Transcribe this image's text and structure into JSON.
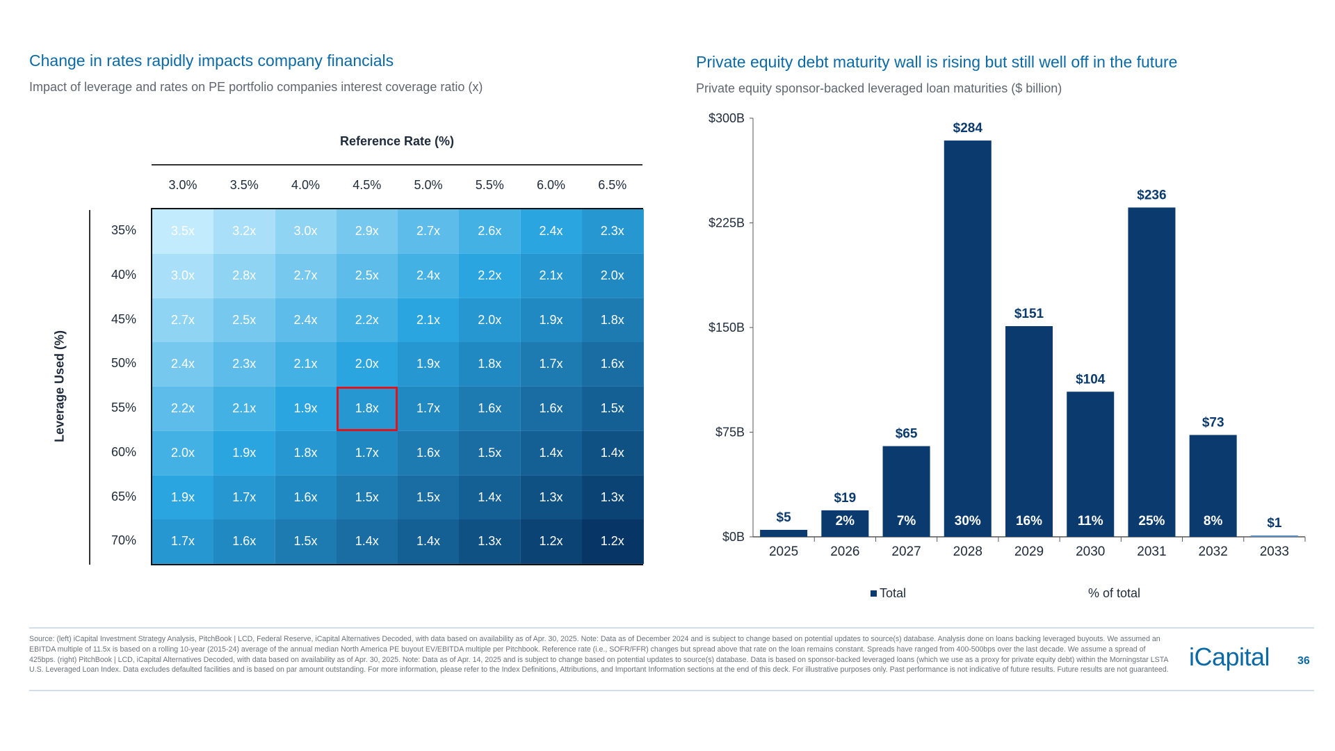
{
  "left": {
    "title": "Change in rates rapidly impacts company financials",
    "subtitle": "Impact of leverage and rates on PE portfolio companies interest coverage ratio (x)"
  },
  "right": {
    "title": "Private equity debt maturity wall is rising but still well off in the future",
    "subtitle": "Private equity sponsor-backed leveraged loan maturities ($ billion)"
  },
  "chart_data": [
    {
      "type": "heatmap",
      "xlabel": "Reference Rate (%)",
      "ylabel": "Leverage Used (%)",
      "columns": [
        "3.0%",
        "3.5%",
        "4.0%",
        "4.5%",
        "5.0%",
        "5.5%",
        "6.0%",
        "6.5%"
      ],
      "rows": [
        "35%",
        "40%",
        "45%",
        "50%",
        "55%",
        "60%",
        "65%",
        "70%"
      ],
      "values": [
        [
          "3.5x",
          "3.2x",
          "3.0x",
          "2.9x",
          "2.7x",
          "2.6x",
          "2.4x",
          "2.3x"
        ],
        [
          "3.0x",
          "2.8x",
          "2.7x",
          "2.5x",
          "2.4x",
          "2.2x",
          "2.1x",
          "2.0x"
        ],
        [
          "2.7x",
          "2.5x",
          "2.4x",
          "2.2x",
          "2.1x",
          "2.0x",
          "1.9x",
          "1.8x"
        ],
        [
          "2.4x",
          "2.3x",
          "2.1x",
          "2.0x",
          "1.9x",
          "1.8x",
          "1.7x",
          "1.6x"
        ],
        [
          "2.2x",
          "2.1x",
          "1.9x",
          "1.8x",
          "1.7x",
          "1.6x",
          "1.6x",
          "1.5x"
        ],
        [
          "2.0x",
          "1.9x",
          "1.8x",
          "1.7x",
          "1.6x",
          "1.5x",
          "1.4x",
          "1.4x"
        ],
        [
          "1.9x",
          "1.7x",
          "1.6x",
          "1.5x",
          "1.5x",
          "1.4x",
          "1.3x",
          "1.3x"
        ],
        [
          "1.7x",
          "1.6x",
          "1.5x",
          "1.4x",
          "1.4x",
          "1.3x",
          "1.2x",
          "1.2x"
        ]
      ],
      "highlight": {
        "row": "55%",
        "column": "4.5%",
        "color": "#e0141e"
      },
      "color_scale": [
        "#c2ebfd",
        "#2aa5df",
        "#073566"
      ]
    },
    {
      "type": "bar",
      "categories": [
        "2025",
        "2026",
        "2027",
        "2028",
        "2029",
        "2030",
        "2031",
        "2032",
        "2033"
      ],
      "values": [
        5,
        19,
        65,
        284,
        151,
        104,
        236,
        73,
        1
      ],
      "value_labels": [
        "$5",
        "$19",
        "$65",
        "$284",
        "$151",
        "$104",
        "$236",
        "$73",
        "$1"
      ],
      "pct_labels": [
        "",
        "2%",
        "7%",
        "30%",
        "16%",
        "11%",
        "25%",
        "8%",
        ""
      ],
      "ylim": [
        0,
        300
      ],
      "yticks": [
        0,
        75,
        150,
        225,
        300
      ],
      "ytick_labels": [
        "$0B",
        "$75B",
        "$150B",
        "$225B",
        "$300B"
      ],
      "legend": [
        "Total",
        "% of total"
      ],
      "legend_placement": "bottom",
      "bar_color": "#0a3a6e",
      "grid": false
    }
  ],
  "footer": {
    "source": "Source: (left) iCapital Investment Strategy Analysis, PitchBook | LCD, Federal Reserve, iCapital Alternatives Decoded, with data based on availability as of Apr. 30, 2025. Note: Data as of December 2024 and is subject to change based on potential updates to source(s) database. Analysis done on loans backing leveraged buyouts. We assumed an EBITDA multiple of 11.5x is based on a rolling 10-year (2015-24) average of the annual median North America PE buyout EV/EBITDA multiple per Pitchbook. Reference rate (i.e., SOFR/FFR) changes but spread above that rate on the loan remains constant. Spreads have ranged from 400-500bps over the last decade. We assume a spread of 425bps. (right) PitchBook | LCD, iCapital Alternatives Decoded, with data based on availability as of Apr. 30, 2025. Note: Data as of Apr. 14, 2025 and is subject to change based on potential updates to source(s) database. Data is based on sponsor-backed leveraged loans (which we use as a proxy for private equity debt) within the Morningstar LSTA U.S. Leveraged Loan Index. Data excludes defaulted facilities and is based on par amount outstanding. For more information, please refer to the Index Definitions, Attributions, and Important Information sections at the end of this deck. For illustrative purposes only. Past performance is not indicative of future results. Future results are not guaranteed.",
    "logo": "iCapital",
    "page_number": "36"
  },
  "colors": {
    "title": "#0b6aa6",
    "navy": "#0a3a6e"
  }
}
